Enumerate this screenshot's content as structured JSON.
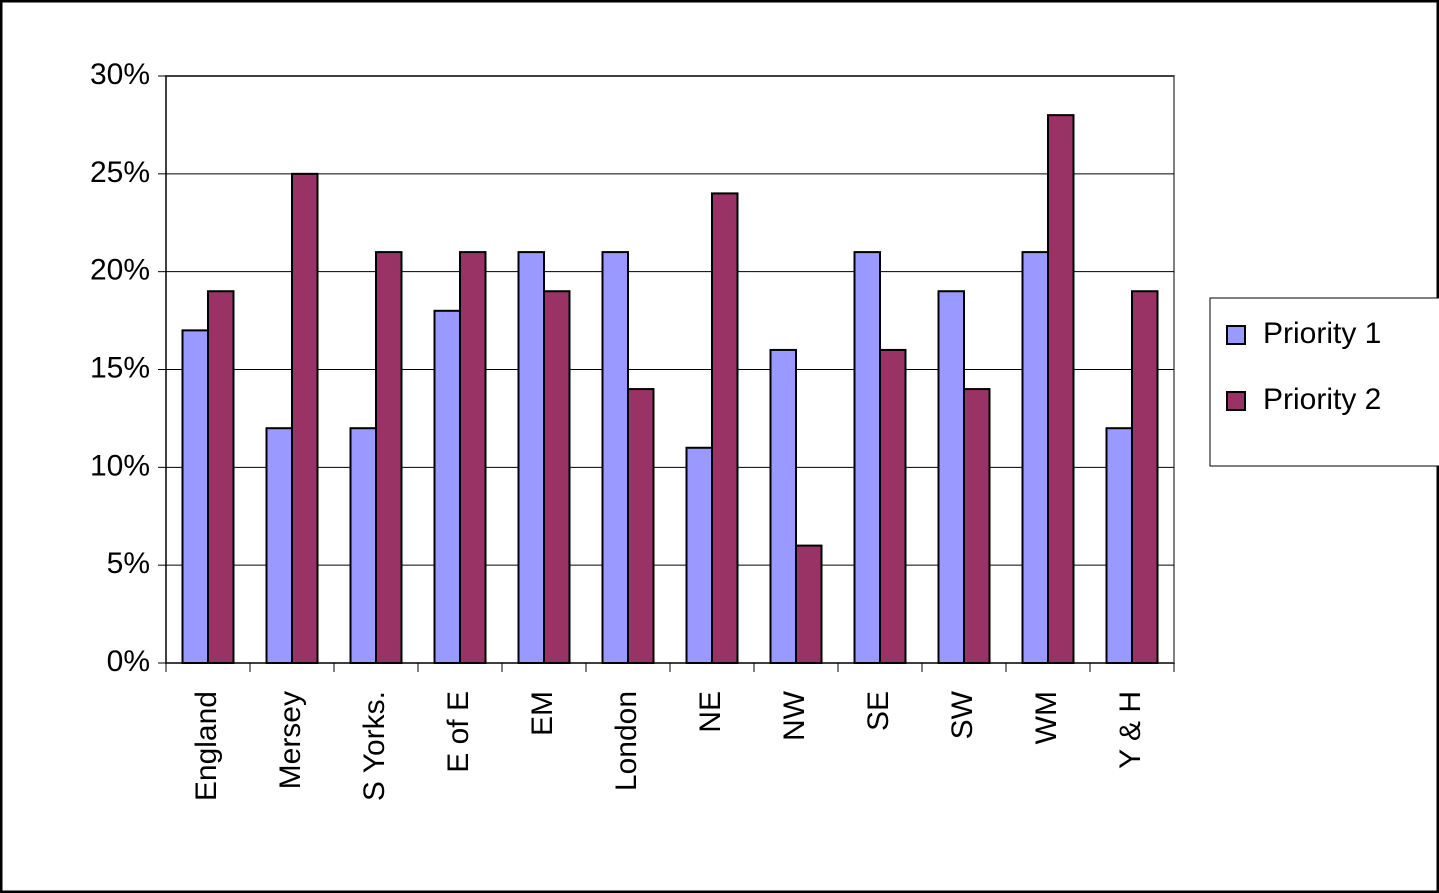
{
  "chart_data": {
    "type": "bar",
    "categories": [
      "England",
      "Mersey",
      "S Yorks.",
      "E of E",
      "EM",
      "London",
      "NE",
      "NW",
      "SE",
      "SW",
      "WM",
      "Y & H"
    ],
    "series": [
      {
        "name": "Priority 1",
        "color": "#9999ff",
        "values": [
          17,
          12,
          12,
          18,
          21,
          21,
          11,
          16,
          21,
          19,
          21,
          12
        ]
      },
      {
        "name": "Priority 2",
        "color": "#993366",
        "values": [
          19,
          25,
          21,
          21,
          19,
          14,
          24,
          6,
          16,
          14,
          28,
          19
        ]
      }
    ],
    "ylim": [
      0,
      30
    ],
    "yticks": [
      {
        "value": 0,
        "label": "0%"
      },
      {
        "value": 5,
        "label": "5%"
      },
      {
        "value": 10,
        "label": "10%"
      },
      {
        "value": 15,
        "label": "15%"
      },
      {
        "value": 20,
        "label": "20%"
      },
      {
        "value": 25,
        "label": "25%"
      },
      {
        "value": 30,
        "label": "30%"
      }
    ],
    "grid": true,
    "legend": "right"
  }
}
